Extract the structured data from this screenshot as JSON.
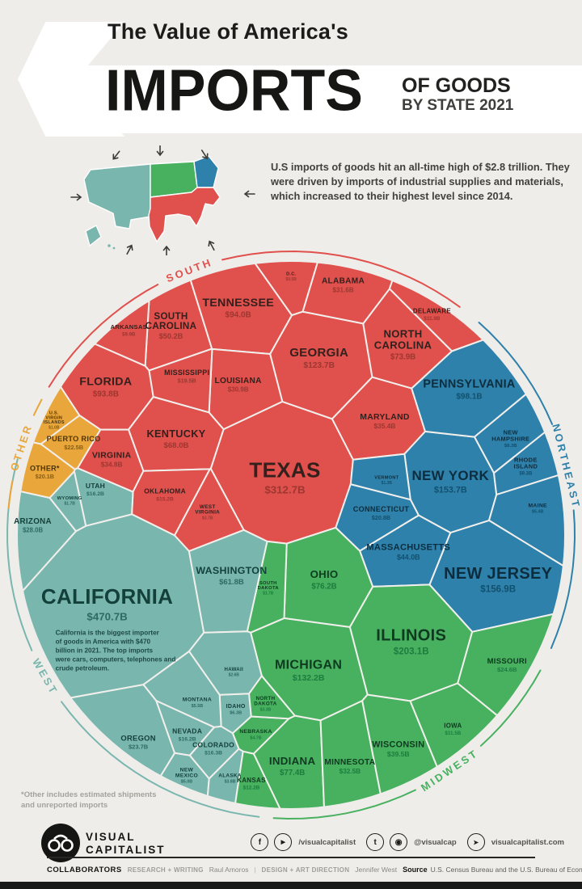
{
  "header": {
    "eyebrow": "The Value of America's",
    "title": "IMPORTS",
    "subtitle_line1": "OF GOODS",
    "subtitle_line2": "BY STATE 2021"
  },
  "intro": {
    "text": "U.S imports of goods hit an all-time high of $2.8 trillion. They were driven by imports of industrial supplies and materials, which increased to their highest level since 2014."
  },
  "footnote": "*Other includes estimated shipments and unreported imports",
  "brand": {
    "name_line1": "VISUAL",
    "name_line2": "CAPITALIST",
    "social_handle_1": "/visualcapitalist",
    "social_handle_2": "@visualcap",
    "website": "visualcapitalist.com",
    "icons": {
      "facebook": "f",
      "youtube": "▶",
      "twitter": "t",
      "instagram": "◉",
      "cursor": "➤"
    }
  },
  "collaborators": {
    "label": "COLLABORATORS",
    "research_label": "RESEARCH + WRITING",
    "research_name": "Raul Amoros",
    "separator": "|",
    "design_label": "DESIGN + ART DIRECTION",
    "design_name": "Jennifer West",
    "source_label": "Source",
    "source_text": "U.S. Census Bureau and the U.S. Bureau of Economic Analysis"
  },
  "chart_data": {
    "type": "voronoi-treemap",
    "title": "The Value of America's Imports of Goods by State 2021",
    "unit": "USD billions",
    "total_note": "U.S. imports of goods all-time high of $2.8 trillion",
    "legend_position": "arc labels around circle",
    "california_note": "California is the biggest importer of goods in America with $470 billion in 2021. The top imports were cars, computers, telephones and crude petroleum.",
    "regions": [
      {
        "id": "south",
        "label": "SOUTH",
        "color": "#e0504c"
      },
      {
        "id": "northeast",
        "label": "NORTHEAST",
        "color": "#2e81aa"
      },
      {
        "id": "midwest",
        "label": "MIDWEST",
        "color": "#47b15f"
      },
      {
        "id": "west",
        "label": "WEST",
        "color": "#79b6ae"
      },
      {
        "id": "other",
        "label": "OTHER",
        "color": "#e9a63b"
      }
    ],
    "states": [
      {
        "id": "texas",
        "name": "TEXAS",
        "label": "$312.7B",
        "value_b": 312.7,
        "region": "south"
      },
      {
        "id": "georgia",
        "name": "GEORGIA",
        "label": "$123.7B",
        "value_b": 123.7,
        "region": "south"
      },
      {
        "id": "tennessee",
        "name": "TENNESSEE",
        "label": "$94.0B",
        "value_b": 94.0,
        "region": "south"
      },
      {
        "id": "florida",
        "name": "FLORIDA",
        "label": "$93.8B",
        "value_b": 93.8,
        "region": "south"
      },
      {
        "id": "north-carolina",
        "name": "NORTH CAROLINA",
        "label": "$73.9B",
        "value_b": 73.9,
        "region": "south"
      },
      {
        "id": "kentucky",
        "name": "KENTUCKY",
        "label": "$68.0B",
        "value_b": 68.0,
        "region": "south"
      },
      {
        "id": "south-carolina",
        "name": "SOUTH CAROLINA",
        "label": "$50.2B",
        "value_b": 50.2,
        "region": "south"
      },
      {
        "id": "maryland",
        "name": "MARYLAND",
        "label": "$35.4B",
        "value_b": 35.4,
        "region": "south"
      },
      {
        "id": "virginia",
        "name": "VIRGINIA",
        "label": "$34.8B",
        "value_b": 34.8,
        "region": "south"
      },
      {
        "id": "alabama",
        "name": "ALABAMA",
        "label": "$31.6B",
        "value_b": 31.6,
        "region": "south"
      },
      {
        "id": "louisiana",
        "name": "LOUISIANA",
        "label": "$30.9B",
        "value_b": 30.9,
        "region": "south"
      },
      {
        "id": "mississippi",
        "name": "MISSISSIPPI",
        "label": "$19.5B",
        "value_b": 19.5,
        "region": "south"
      },
      {
        "id": "oklahoma",
        "name": "OKLAHOMA",
        "label": "$15.2B",
        "value_b": 15.2,
        "region": "south"
      },
      {
        "id": "delaware",
        "name": "DELAWARE",
        "label": "$11.9B",
        "value_b": 11.9,
        "region": "south"
      },
      {
        "id": "arkansas",
        "name": "ARKANSAS",
        "label": "$9.9B",
        "value_b": 9.9,
        "region": "south"
      },
      {
        "id": "west-virginia",
        "name": "WEST VIRGINIA",
        "label": "$3.7B",
        "value_b": 3.7,
        "region": "south"
      },
      {
        "id": "dc",
        "name": "D.C.",
        "label": "$0.5B",
        "value_b": 0.5,
        "region": "south"
      },
      {
        "id": "new-jersey",
        "name": "NEW JERSEY",
        "label": "$156.9B",
        "value_b": 156.9,
        "region": "northeast"
      },
      {
        "id": "new-york",
        "name": "NEW YORK",
        "label": "$153.7B",
        "value_b": 153.7,
        "region": "northeast"
      },
      {
        "id": "pennsylvania",
        "name": "PENNSYLVANIA",
        "label": "$98.1B",
        "value_b": 98.1,
        "region": "northeast"
      },
      {
        "id": "massachusetts",
        "name": "MASSACHUSETTS",
        "label": "$44.0B",
        "value_b": 44.0,
        "region": "northeast"
      },
      {
        "id": "connecticut",
        "name": "CONNECTICUT",
        "label": "$20.8B",
        "value_b": 20.8,
        "region": "northeast"
      },
      {
        "id": "rhode-island",
        "name": "RHODE ISLAND",
        "label": "$9.3B",
        "value_b": 9.3,
        "region": "northeast"
      },
      {
        "id": "new-hampshire",
        "name": "NEW HAMPSHIRE",
        "label": "$8.3B",
        "value_b": 8.3,
        "region": "northeast"
      },
      {
        "id": "maine",
        "name": "MAINE",
        "label": "$5.4B",
        "value_b": 5.4,
        "region": "northeast"
      },
      {
        "id": "vermont",
        "name": "VERMONT",
        "label": "$1.3B",
        "value_b": 1.3,
        "region": "northeast"
      },
      {
        "id": "illinois",
        "name": "ILLINOIS",
        "label": "$203.1B",
        "value_b": 203.1,
        "region": "midwest"
      },
      {
        "id": "michigan",
        "name": "MICHIGAN",
        "label": "$132.2B",
        "value_b": 132.2,
        "region": "midwest"
      },
      {
        "id": "indiana",
        "name": "INDIANA",
        "label": "$77.4B",
        "value_b": 77.4,
        "region": "midwest"
      },
      {
        "id": "ohio",
        "name": "OHIO",
        "label": "$76.2B",
        "value_b": 76.2,
        "region": "midwest"
      },
      {
        "id": "wisconsin",
        "name": "WISCONSIN",
        "label": "$39.5B",
        "value_b": 39.5,
        "region": "midwest"
      },
      {
        "id": "minnesota",
        "name": "MINNESOTA",
        "label": "$32.5B",
        "value_b": 32.5,
        "region": "midwest"
      },
      {
        "id": "missouri",
        "name": "MISSOURI",
        "label": "$24.6B",
        "value_b": 24.6,
        "region": "midwest"
      },
      {
        "id": "kansas",
        "name": "KANSAS",
        "label": "$12.2B",
        "value_b": 12.2,
        "region": "midwest"
      },
      {
        "id": "iowa",
        "name": "IOWA",
        "label": "$11.5B",
        "value_b": 11.5,
        "region": "midwest"
      },
      {
        "id": "nebraska",
        "name": "NEBRASKA",
        "label": "$4.7B",
        "value_b": 4.7,
        "region": "midwest"
      },
      {
        "id": "north-dakota",
        "name": "NORTH DAKOTA",
        "label": "$3.3B",
        "value_b": 3.3,
        "region": "midwest"
      },
      {
        "id": "south-dakota",
        "name": "SOUTH DAKOTA",
        "label": "$1.7B",
        "value_b": 1.7,
        "region": "midwest"
      },
      {
        "id": "california",
        "name": "CALIFORNIA",
        "label": "$470.7B",
        "value_b": 470.7,
        "region": "west"
      },
      {
        "id": "washington",
        "name": "WASHINGTON",
        "label": "$61.8B",
        "value_b": 61.8,
        "region": "west"
      },
      {
        "id": "arizona",
        "name": "ARIZONA",
        "label": "$28.0B",
        "value_b": 28.0,
        "region": "west"
      },
      {
        "id": "oregon",
        "name": "OREGON",
        "label": "$23.7B",
        "value_b": 23.7,
        "region": "west"
      },
      {
        "id": "colorado",
        "name": "COLORADO",
        "label": "$16.3B",
        "value_b": 16.3,
        "region": "west"
      },
      {
        "id": "nevada",
        "name": "NEVADA",
        "label": "$16.2B",
        "value_b": 16.2,
        "region": "west"
      },
      {
        "id": "utah",
        "name": "UTAH",
        "label": "$16.2B",
        "value_b": 16.2,
        "region": "west"
      },
      {
        "id": "idaho",
        "name": "IDAHO",
        "label": "$6.3B",
        "value_b": 6.3,
        "region": "west"
      },
      {
        "id": "montana",
        "name": "MONTANA",
        "label": "$5.5B",
        "value_b": 5.5,
        "region": "west"
      },
      {
        "id": "new-mexico",
        "name": "NEW MEXICO",
        "label": "$5.0B",
        "value_b": 5.0,
        "region": "west"
      },
      {
        "id": "alaska",
        "name": "ALASKA",
        "label": "$3.8B",
        "value_b": 3.8,
        "region": "west"
      },
      {
        "id": "hawaii",
        "name": "HAWAII",
        "label": "$2.6B",
        "value_b": 2.6,
        "region": "west"
      },
      {
        "id": "wyoming",
        "name": "WYOMING",
        "label": "$1.7B",
        "value_b": 1.7,
        "region": "west"
      },
      {
        "id": "puerto-rico",
        "name": "PUERTO RICO",
        "label": "$22.5B",
        "value_b": 22.5,
        "region": "other"
      },
      {
        "id": "other",
        "name": "OTHER*",
        "label": "$20.1B",
        "value_b": 20.1,
        "region": "other"
      },
      {
        "id": "usvi",
        "name": "U.S. VIRGIN ISLANDS",
        "label": "$1.0B",
        "value_b": 1.0,
        "region": "other"
      }
    ]
  }
}
